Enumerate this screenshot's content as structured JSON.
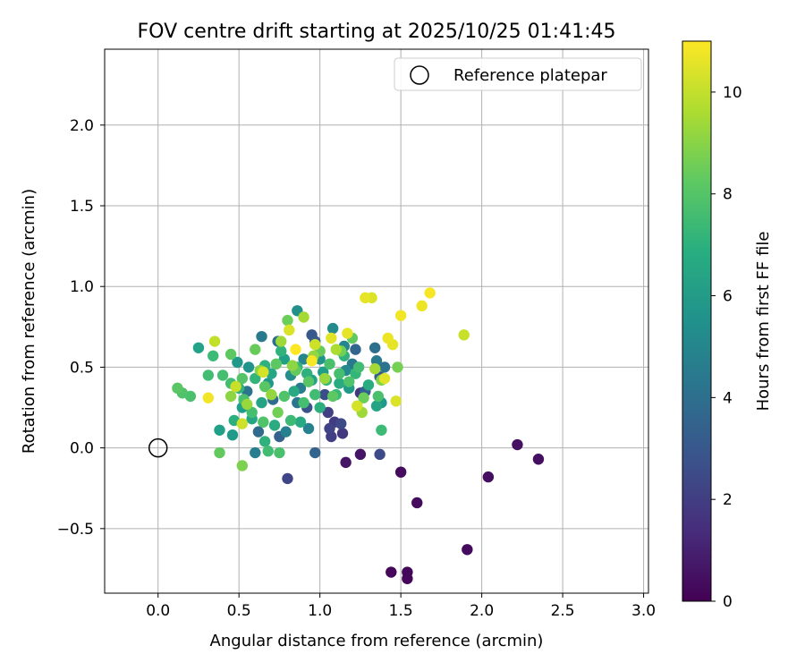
{
  "chart_data": {
    "type": "scatter",
    "title": "FOV centre drift starting at 2025/10/25 01:41:45",
    "xlabel": "Angular distance from reference (arcmin)",
    "ylabel": "Rotation from reference (arcmin)",
    "xlim": [
      -0.33,
      3.03
    ],
    "ylim": [
      -0.9,
      2.47
    ],
    "grid": true,
    "xticks": [
      0.0,
      0.5,
      1.0,
      1.5,
      2.0,
      2.5,
      3.0
    ],
    "xtick_labels": [
      "0.0",
      "0.5",
      "1.0",
      "1.5",
      "2.0",
      "2.5",
      "3.0"
    ],
    "yticks": [
      -0.5,
      0.0,
      0.5,
      1.0,
      1.5,
      2.0
    ],
    "ytick_labels": [
      "−0.5",
      "0.0",
      "0.5",
      "1.0",
      "1.5",
      "2.0"
    ],
    "legend": {
      "position": "top-right",
      "entries": [
        {
          "label": "Reference platepar",
          "marker": "open-circle"
        }
      ]
    },
    "reference_point": {
      "x": 0.0,
      "y": 0.0
    },
    "colorbar": {
      "label": "Hours from first FF file",
      "colormap": "viridis",
      "range": [
        0,
        11
      ],
      "ticks": [
        0,
        2,
        4,
        6,
        8,
        10
      ],
      "tick_labels": [
        "0",
        "2",
        "4",
        "6",
        "8",
        "10"
      ]
    },
    "points": [
      {
        "x": 1.44,
        "y": -0.77,
        "t": 0.2
      },
      {
        "x": 1.54,
        "y": -0.77,
        "t": 0.2
      },
      {
        "x": 1.54,
        "y": -0.81,
        "t": 0.2
      },
      {
        "x": 1.91,
        "y": -0.63,
        "t": 0.3
      },
      {
        "x": 1.6,
        "y": -0.34,
        "t": 0.3
      },
      {
        "x": 2.04,
        "y": -0.18,
        "t": 0.4
      },
      {
        "x": 1.5,
        "y": -0.15,
        "t": 0.3
      },
      {
        "x": 2.22,
        "y": 0.02,
        "t": 0.5
      },
      {
        "x": 2.35,
        "y": -0.07,
        "t": 0.4
      },
      {
        "x": 1.25,
        "y": -0.04,
        "t": 0.6
      },
      {
        "x": 1.16,
        "y": -0.09,
        "t": 0.6
      },
      {
        "x": 1.37,
        "y": -0.04,
        "t": 2.5
      },
      {
        "x": 0.8,
        "y": -0.19,
        "t": 2.3
      },
      {
        "x": 0.97,
        "y": -0.03,
        "t": 3.5
      },
      {
        "x": 1.14,
        "y": 0.09,
        "t": 1.8
      },
      {
        "x": 1.07,
        "y": 0.07,
        "t": 2.0
      },
      {
        "x": 1.06,
        "y": 0.12,
        "t": 2.2
      },
      {
        "x": 1.09,
        "y": 0.16,
        "t": 1.9
      },
      {
        "x": 1.13,
        "y": 0.15,
        "t": 2.4
      },
      {
        "x": 1.05,
        "y": 0.22,
        "t": 2.1
      },
      {
        "x": 1.25,
        "y": 0.34,
        "t": 1.7
      },
      {
        "x": 1.03,
        "y": 0.33,
        "t": 2.6
      },
      {
        "x": 0.92,
        "y": 0.25,
        "t": 2.8
      },
      {
        "x": 0.95,
        "y": 0.7,
        "t": 3.0
      },
      {
        "x": 0.97,
        "y": 0.66,
        "t": 3.2
      },
      {
        "x": 1.37,
        "y": 0.44,
        "t": 3.1
      },
      {
        "x": 1.28,
        "y": 0.35,
        "t": 3.3
      },
      {
        "x": 1.34,
        "y": 0.62,
        "t": 4.0
      },
      {
        "x": 1.4,
        "y": 0.5,
        "t": 4.2
      },
      {
        "x": 1.35,
        "y": 0.54,
        "t": 4.5
      },
      {
        "x": 0.86,
        "y": 0.85,
        "t": 5.5
      },
      {
        "x": 0.64,
        "y": 0.69,
        "t": 4.5
      },
      {
        "x": 0.74,
        "y": 0.66,
        "t": 4.0
      },
      {
        "x": 0.55,
        "y": 0.35,
        "t": 4.2
      },
      {
        "x": 0.62,
        "y": 0.1,
        "t": 3.8
      },
      {
        "x": 0.6,
        "y": -0.03,
        "t": 4.7
      },
      {
        "x": 0.75,
        "y": 0.07,
        "t": 3.4
      },
      {
        "x": 0.79,
        "y": 0.1,
        "t": 4.8
      },
      {
        "x": 0.71,
        "y": 0.3,
        "t": 3.9
      },
      {
        "x": 0.86,
        "y": 0.28,
        "t": 4.3
      },
      {
        "x": 0.88,
        "y": 0.37,
        "t": 4.6
      },
      {
        "x": 0.93,
        "y": 0.12,
        "t": 4.9
      },
      {
        "x": 1.16,
        "y": 0.48,
        "t": 5.2
      },
      {
        "x": 1.2,
        "y": 0.52,
        "t": 4.4
      },
      {
        "x": 1.22,
        "y": 0.61,
        "t": 3.6
      },
      {
        "x": 1.08,
        "y": 0.74,
        "t": 5.3
      },
      {
        "x": 1.15,
        "y": 0.63,
        "t": 5.0
      },
      {
        "x": 1.0,
        "y": 0.55,
        "t": 5.6
      },
      {
        "x": 0.9,
        "y": 0.55,
        "t": 5.1
      },
      {
        "x": 0.82,
        "y": 0.45,
        "t": 5.4
      },
      {
        "x": 0.68,
        "y": 0.4,
        "t": 5.8
      },
      {
        "x": 0.56,
        "y": 0.5,
        "t": 5.7
      },
      {
        "x": 0.49,
        "y": 0.53,
        "t": 5.9
      },
      {
        "x": 0.38,
        "y": 0.11,
        "t": 6.2
      },
      {
        "x": 0.46,
        "y": 0.08,
        "t": 6.0
      },
      {
        "x": 0.25,
        "y": 0.62,
        "t": 6.3
      },
      {
        "x": 0.52,
        "y": 0.25,
        "t": 6.1
      },
      {
        "x": 0.64,
        "y": 0.28,
        "t": 6.4
      },
      {
        "x": 0.7,
        "y": 0.46,
        "t": 6.5
      },
      {
        "x": 0.78,
        "y": 0.55,
        "t": 6.2
      },
      {
        "x": 0.84,
        "y": 0.35,
        "t": 6.6
      },
      {
        "x": 0.95,
        "y": 0.42,
        "t": 6.3
      },
      {
        "x": 1.02,
        "y": 0.47,
        "t": 6.1
      },
      {
        "x": 1.12,
        "y": 0.4,
        "t": 6.7
      },
      {
        "x": 1.18,
        "y": 0.37,
        "t": 6.0
      },
      {
        "x": 1.3,
        "y": 0.39,
        "t": 6.8
      },
      {
        "x": 1.38,
        "y": 0.28,
        "t": 5.9
      },
      {
        "x": 1.35,
        "y": 0.26,
        "t": 6.4
      },
      {
        "x": 0.47,
        "y": 0.17,
        "t": 6.9
      },
      {
        "x": 0.58,
        "y": 0.18,
        "t": 6.5
      },
      {
        "x": 0.66,
        "y": 0.04,
        "t": 7.0
      },
      {
        "x": 0.72,
        "y": 0.14,
        "t": 6.8
      },
      {
        "x": 0.88,
        "y": 0.16,
        "t": 6.6
      },
      {
        "x": 1.0,
        "y": 0.25,
        "t": 6.9
      },
      {
        "x": 0.5,
        "y": 0.37,
        "t": 7.1
      },
      {
        "x": 0.6,
        "y": 0.43,
        "t": 7.2
      },
      {
        "x": 0.66,
        "y": 0.51,
        "t": 7.0
      },
      {
        "x": 0.76,
        "y": 0.6,
        "t": 7.1
      },
      {
        "x": 0.86,
        "y": 0.5,
        "t": 7.3
      },
      {
        "x": 0.92,
        "y": 0.46,
        "t": 7.0
      },
      {
        "x": 1.04,
        "y": 0.42,
        "t": 7.2
      },
      {
        "x": 1.1,
        "y": 0.33,
        "t": 7.4
      },
      {
        "x": 1.15,
        "y": 0.57,
        "t": 7.1
      },
      {
        "x": 1.22,
        "y": 0.46,
        "t": 7.3
      },
      {
        "x": 0.31,
        "y": 0.45,
        "t": 7.6
      },
      {
        "x": 0.34,
        "y": 0.57,
        "t": 7.5
      },
      {
        "x": 0.2,
        "y": 0.32,
        "t": 7.8
      },
      {
        "x": 0.15,
        "y": 0.34,
        "t": 7.9
      },
      {
        "x": 0.4,
        "y": 0.45,
        "t": 7.7
      },
      {
        "x": 0.45,
        "y": 0.4,
        "t": 7.6
      },
      {
        "x": 0.53,
        "y": 0.3,
        "t": 7.8
      },
      {
        "x": 0.58,
        "y": 0.22,
        "t": 7.7
      },
      {
        "x": 0.65,
        "y": 0.16,
        "t": 7.9
      },
      {
        "x": 0.68,
        "y": -0.02,
        "t": 7.6
      },
      {
        "x": 0.75,
        "y": -0.03,
        "t": 7.8
      },
      {
        "x": 0.82,
        "y": 0.17,
        "t": 7.5
      },
      {
        "x": 0.78,
        "y": 0.32,
        "t": 7.9
      },
      {
        "x": 0.9,
        "y": 0.28,
        "t": 7.7
      },
      {
        "x": 0.97,
        "y": 0.33,
        "t": 7.6
      },
      {
        "x": 1.06,
        "y": 0.52,
        "t": 7.8
      },
      {
        "x": 1.12,
        "y": 0.46,
        "t": 7.7
      },
      {
        "x": 1.18,
        "y": 0.41,
        "t": 7.9
      },
      {
        "x": 1.24,
        "y": 0.5,
        "t": 7.6
      },
      {
        "x": 1.36,
        "y": 0.32,
        "t": 7.8
      },
      {
        "x": 1.38,
        "y": 0.11,
        "t": 7.5
      },
      {
        "x": 0.12,
        "y": 0.37,
        "t": 8.1
      },
      {
        "x": 0.38,
        "y": -0.03,
        "t": 8.3
      },
      {
        "x": 0.45,
        "y": 0.58,
        "t": 8.2
      },
      {
        "x": 0.52,
        "y": 0.43,
        "t": 8.0
      },
      {
        "x": 0.6,
        "y": 0.61,
        "t": 8.4
      },
      {
        "x": 0.66,
        "y": 0.38,
        "t": 8.1
      },
      {
        "x": 0.73,
        "y": 0.52,
        "t": 8.2
      },
      {
        "x": 0.8,
        "y": 0.79,
        "t": 8.5
      },
      {
        "x": 0.85,
        "y": 0.48,
        "t": 8.3
      },
      {
        "x": 0.93,
        "y": 0.41,
        "t": 8.1
      },
      {
        "x": 1.0,
        "y": 0.6,
        "t": 8.4
      },
      {
        "x": 1.08,
        "y": 0.32,
        "t": 8.2
      },
      {
        "x": 1.13,
        "y": 0.6,
        "t": 8.6
      },
      {
        "x": 1.2,
        "y": 0.68,
        "t": 8.3
      },
      {
        "x": 1.27,
        "y": 0.31,
        "t": 8.5
      },
      {
        "x": 1.48,
        "y": 0.5,
        "t": 8.7
      },
      {
        "x": 0.52,
        "y": -0.11,
        "t": 8.8
      },
      {
        "x": 0.74,
        "y": 0.22,
        "t": 8.6
      },
      {
        "x": 1.38,
        "y": 0.42,
        "t": 8.9
      },
      {
        "x": 0.45,
        "y": 0.32,
        "t": 9.1
      },
      {
        "x": 0.55,
        "y": 0.27,
        "t": 9.3
      },
      {
        "x": 0.63,
        "y": 0.48,
        "t": 9.0
      },
      {
        "x": 0.7,
        "y": 0.33,
        "t": 9.2
      },
      {
        "x": 0.76,
        "y": 0.66,
        "t": 9.4
      },
      {
        "x": 0.83,
        "y": 0.51,
        "t": 9.1
      },
      {
        "x": 0.9,
        "y": 0.81,
        "t": 9.5
      },
      {
        "x": 0.96,
        "y": 0.57,
        "t": 9.2
      },
      {
        "x": 1.03,
        "y": 0.43,
        "t": 9.3
      },
      {
        "x": 1.1,
        "y": 0.61,
        "t": 9.6
      },
      {
        "x": 1.26,
        "y": 0.22,
        "t": 9.4
      },
      {
        "x": 1.34,
        "y": 0.49,
        "t": 9.5
      },
      {
        "x": 0.35,
        "y": 0.66,
        "t": 10.0
      },
      {
        "x": 0.52,
        "y": 0.15,
        "t": 10.2
      },
      {
        "x": 0.48,
        "y": 0.38,
        "t": 10.1
      },
      {
        "x": 0.65,
        "y": 0.47,
        "t": 10.3
      },
      {
        "x": 0.81,
        "y": 0.73,
        "t": 10.4
      },
      {
        "x": 0.97,
        "y": 0.64,
        "t": 10.2
      },
      {
        "x": 1.07,
        "y": 0.68,
        "t": 10.5
      },
      {
        "x": 1.17,
        "y": 0.71,
        "t": 10.6
      },
      {
        "x": 1.23,
        "y": 0.26,
        "t": 10.3
      },
      {
        "x": 1.28,
        "y": 0.93,
        "t": 10.6
      },
      {
        "x": 1.32,
        "y": 0.93,
        "t": 10.4
      },
      {
        "x": 1.4,
        "y": 0.43,
        "t": 10.5
      },
      {
        "x": 1.42,
        "y": 0.68,
        "t": 10.7
      },
      {
        "x": 1.45,
        "y": 0.64,
        "t": 10.6
      },
      {
        "x": 1.47,
        "y": 0.29,
        "t": 10.4
      },
      {
        "x": 1.5,
        "y": 0.82,
        "t": 10.8
      },
      {
        "x": 1.63,
        "y": 0.88,
        "t": 10.7
      },
      {
        "x": 1.68,
        "y": 0.96,
        "t": 10.9
      },
      {
        "x": 1.89,
        "y": 0.7,
        "t": 10.1
      },
      {
        "x": 0.31,
        "y": 0.31,
        "t": 10.8
      },
      {
        "x": 0.85,
        "y": 0.61,
        "t": 11.0
      },
      {
        "x": 0.95,
        "y": 0.54,
        "t": 10.9
      }
    ]
  }
}
